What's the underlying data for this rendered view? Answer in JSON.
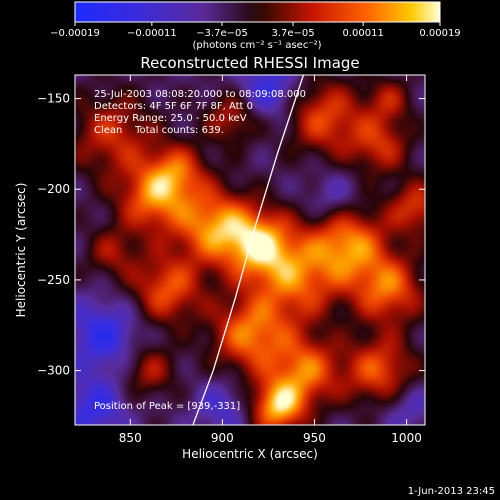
{
  "chart_data": {
    "type": "heatmap",
    "title": "Reconstructed RHESSI Image",
    "xlabel": "Heliocentric X (arcsec)",
    "ylabel": "Heliocentric Y (arcsec)",
    "xlim": [
      820,
      1010
    ],
    "ylim": [
      -330,
      -137
    ],
    "x_ticks": [
      850,
      900,
      950,
      1000
    ],
    "x_tick_labels": [
      "850",
      "900",
      "950",
      "1000"
    ],
    "y_ticks": [
      -150,
      -200,
      -250,
      -300
    ],
    "y_tick_labels": [
      "−150",
      "−200",
      "−250",
      "−300"
    ],
    "colorbar": {
      "range": [
        -0.00019,
        0.00019
      ],
      "tick_values": [
        -0.00019,
        -0.00011,
        -3.7e-05,
        3.7e-05,
        0.00011,
        0.00019
      ],
      "tick_labels": [
        "−0.00019",
        "−0.00011",
        "−3.7e−05",
        "3.7e−05",
        "0.00011",
        "0.00019"
      ],
      "unit_text": "(photons cm⁻² s⁻¹ asec⁻²)"
    },
    "annotations": [
      "25-Jul-2003 08:08:20.000 to 08:09:08.000",
      "Detectors: 4F 5F 6F 7F 8F, Att 0",
      "Energy Range: 25.0 - 50.0 keV",
      "Clean    Total counts: 639."
    ],
    "peak_label": "Position of Peak = [939,-331]",
    "peak": [
      939,
      -331
    ],
    "limb_curve": [
      [
        884,
        -330
      ],
      [
        895,
        -300
      ],
      [
        907,
        -260
      ],
      [
        918,
        -220
      ],
      [
        930,
        -180
      ],
      [
        944,
        -137
      ]
    ],
    "blobs": [
      [
        840,
        -170,
        0.55,
        22
      ],
      [
        862,
        -205,
        0.75,
        18
      ],
      [
        875,
        -190,
        0.6,
        15
      ],
      [
        895,
        -220,
        0.85,
        20
      ],
      [
        920,
        -230,
        0.9,
        18
      ],
      [
        940,
        -250,
        0.7,
        22
      ],
      [
        968,
        -230,
        0.85,
        20
      ],
      [
        990,
        -255,
        0.75,
        18
      ],
      [
        955,
        -160,
        0.65,
        20
      ],
      [
        985,
        -175,
        0.55,
        16
      ],
      [
        905,
        -160,
        0.5,
        14
      ],
      [
        870,
        -255,
        0.7,
        18
      ],
      [
        915,
        -280,
        0.8,
        20
      ],
      [
        945,
        -300,
        0.75,
        18
      ],
      [
        985,
        -300,
        0.7,
        18
      ],
      [
        1005,
        -210,
        0.6,
        14
      ],
      [
        860,
        -300,
        0.45,
        14
      ],
      [
        930,
        -320,
        0.95,
        14
      ],
      [
        840,
        -235,
        0.4,
        14
      ],
      [
        990,
        -150,
        0.4,
        12
      ],
      [
        835,
        -280,
        -0.55,
        18
      ],
      [
        830,
        -320,
        -0.5,
        16
      ],
      [
        900,
        -320,
        -0.35,
        14
      ],
      [
        925,
        -145,
        -0.5,
        16
      ],
      [
        960,
        -205,
        -0.3,
        14
      ],
      [
        1000,
        -320,
        -0.3,
        14
      ]
    ],
    "grid": false,
    "legend": "none"
  },
  "footer_date": "1-Jun-2013 23:45"
}
